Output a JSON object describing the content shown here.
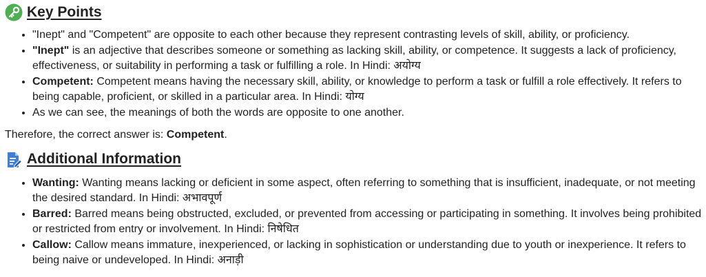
{
  "key_points": {
    "icon": "key-icon",
    "title": "Key Points",
    "items": [
      {
        "bold": "",
        "text": "\"Inept\" and \"Competent\" are opposite to each other because they represent contrasting levels of skill, ability, or proficiency."
      },
      {
        "bold": "\"Inept\"",
        "text": " is an adjective that describes someone or something as lacking skill, ability, or competence. It suggests a lack of proficiency, effectiveness, or suitability in performing a task or fulfilling a role. In Hindi: अयोग्य"
      },
      {
        "bold": "Competent:",
        "text": " Competent means having the necessary skill, ability, or knowledge to perform a task or fulfill a role effectively. It refers to being capable, proficient, or skilled in a particular area. In Hindi: योग्य"
      },
      {
        "bold": "",
        "text": "As we can see, the meanings of both the words are opposite to one another."
      }
    ]
  },
  "conclusion": {
    "prefix": "Therefore, the correct answer is: ",
    "answer": "Competent",
    "suffix": "."
  },
  "additional_info": {
    "icon": "document-edit-icon",
    "title": "Additional Information",
    "items": [
      {
        "bold": "Wanting:",
        "text": " Wanting means lacking or deficient in some aspect, often referring to something that is insufficient, inadequate, or not meeting the desired standard. In Hindi: अभावपूर्ण"
      },
      {
        "bold": "Barred:",
        "text": " Barred means being obstructed, excluded, or prevented from accessing or participating in something. It involves being prohibited or restricted from entry or involvement. In Hindi: निषेधित"
      },
      {
        "bold": "Callow:",
        "text": " Callow means immature, inexperienced, or lacking in sophistication or understanding due to youth or inexperience. It refers to being naive or undeveloped. In Hindi: अनाड़ी"
      }
    ]
  },
  "colors": {
    "key_icon_bg": "#4caf50",
    "doc_icon": "#3f7fd9",
    "text": "#222222"
  }
}
